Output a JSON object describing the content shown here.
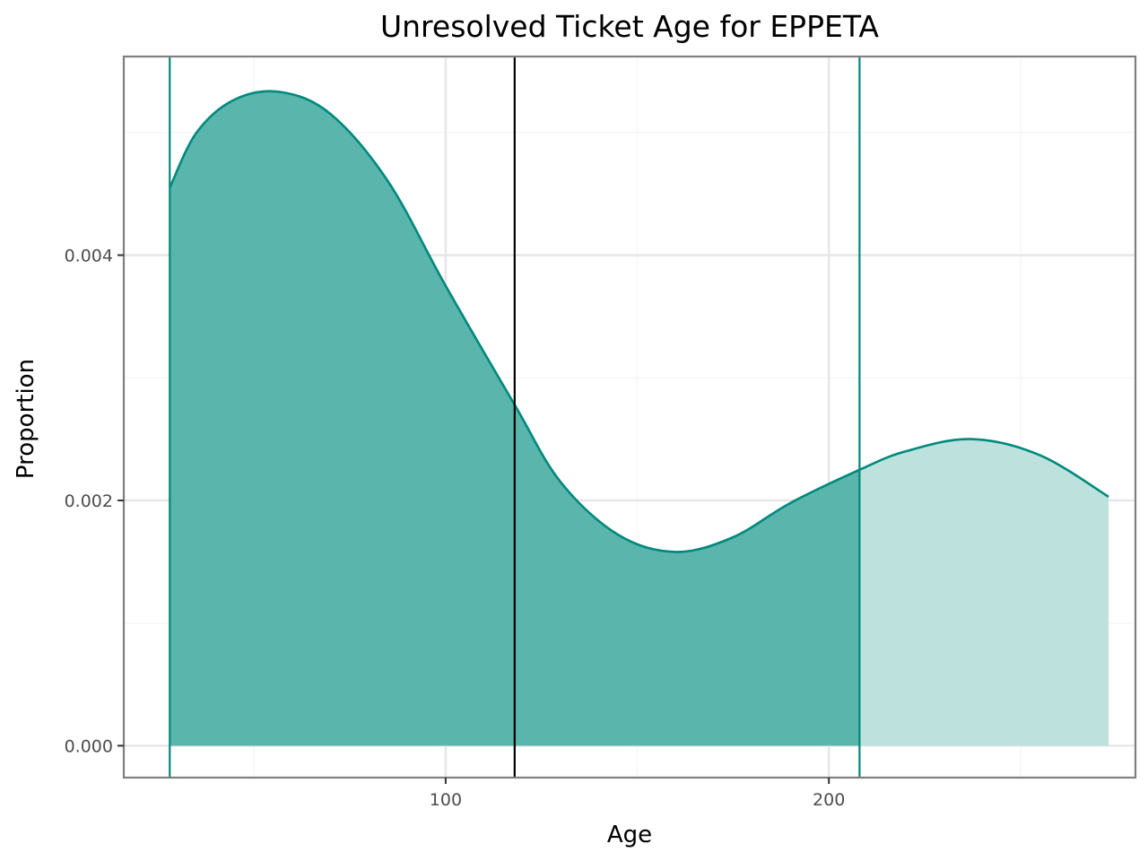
{
  "chart_data": {
    "type": "area",
    "title": "Unresolved Ticket Age for EPPETA",
    "xlabel": "Age",
    "ylabel": "Proportion",
    "xlim": [
      16,
      280
    ],
    "ylim": [
      -0.00026,
      0.00562
    ],
    "x_ticks": [
      100,
      200
    ],
    "x_tick_labels": [
      "100",
      "200"
    ],
    "y_ticks": [
      0.0,
      0.002,
      0.004
    ],
    "y_tick_labels": [
      "0.000",
      "0.002",
      "0.004"
    ],
    "x_minor_ticks": [
      50,
      150,
      250
    ],
    "y_minor_ticks": [
      0.001,
      0.003,
      0.005
    ],
    "grid": true,
    "legend": "none",
    "series": [
      {
        "x": [
          28,
          35,
          45,
          57,
          70,
          85,
          100,
          118,
          130,
          145,
          160,
          175,
          190,
          208,
          220,
          237,
          255,
          273
        ],
        "y": [
          0.00455,
          0.005,
          0.00527,
          0.00533,
          0.00515,
          0.0046,
          0.00375,
          0.00278,
          0.00215,
          0.00172,
          0.00158,
          0.0017,
          0.00198,
          0.00225,
          0.0024,
          0.0025,
          0.00237,
          0.00203
        ]
      }
    ],
    "shaded_interval": [
      28,
      208
    ],
    "vertical_lines": [
      {
        "x": 28,
        "role": "lower-bound",
        "color": "#00897b"
      },
      {
        "x": 118,
        "role": "center",
        "color": "#000000"
      },
      {
        "x": 208,
        "role": "upper-bound",
        "color": "#00897b"
      }
    ],
    "colors": {
      "line": "#00897b",
      "fill_inside": "#5ab5ad",
      "fill_outside": "#bde2de",
      "center_line": "#000000",
      "panel_border": "#7f7f7f",
      "grid_major": "#e6e6e6",
      "grid_minor": "#f5f5f5"
    }
  }
}
